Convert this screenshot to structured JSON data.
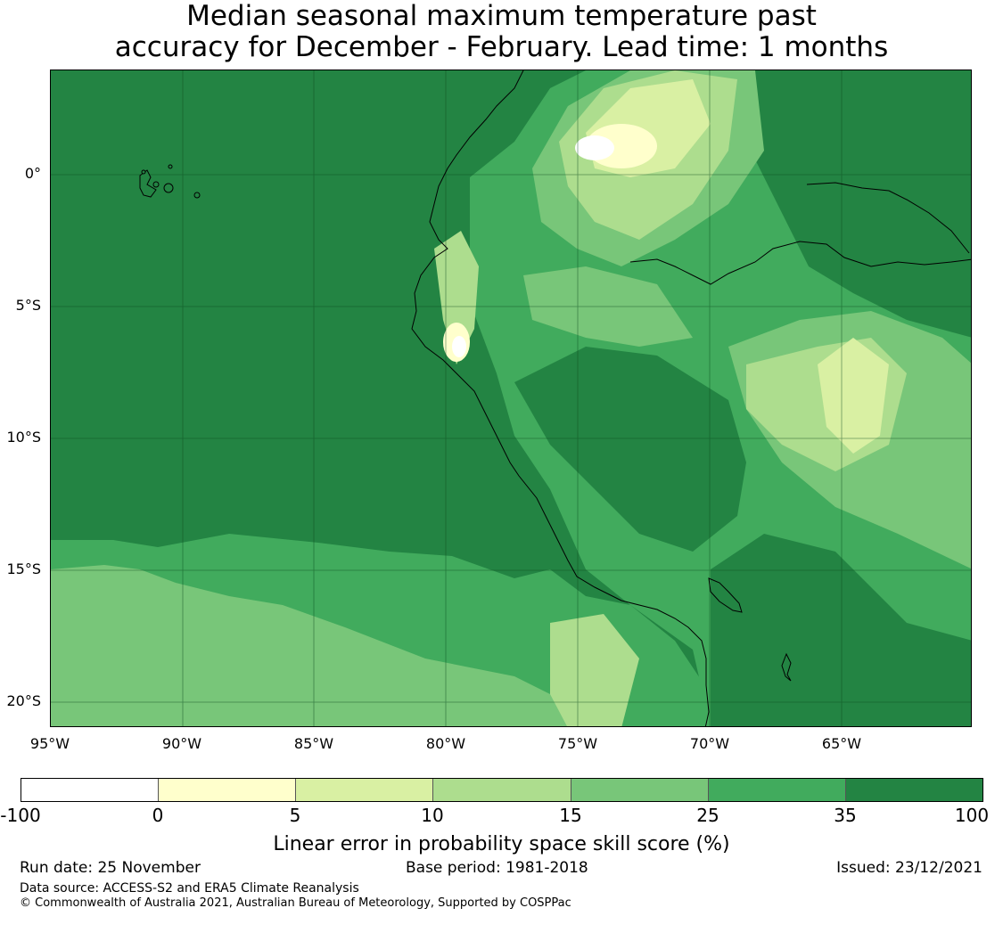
{
  "title": {
    "line1": "Median seasonal maximum temperature past",
    "line2": "accuracy for December - February. Lead time: 1 months"
  },
  "map": {
    "lat_labels": [
      "0°",
      "5°S",
      "10°S",
      "15°S",
      "20°S"
    ],
    "lon_labels": [
      "95°W",
      "90°W",
      "85°W",
      "80°W",
      "75°W",
      "70°W",
      "65°W"
    ]
  },
  "colorbar": {
    "label": "Linear error in probability space skill score (%)",
    "ticks": [
      "-100",
      "0",
      "5",
      "10",
      "15",
      "25",
      "35",
      "100"
    ],
    "colors": [
      "#ffffff",
      "#ffffcc",
      "#d9f0a3",
      "#addd8e",
      "#78c679",
      "#41ab5d",
      "#238443"
    ]
  },
  "footer": {
    "run_date": "Run date: 25 November",
    "base_period": "Base period: 1981-2018",
    "issued": "Issued: 23/12/2021",
    "data_source": "Data source: ACCESS-S2 and ERA5 Climate Reanalysis",
    "copyright": "© Commonwealth of Australia 2021, Australian Bureau of Meteorology, Supported by COSPPac"
  }
}
